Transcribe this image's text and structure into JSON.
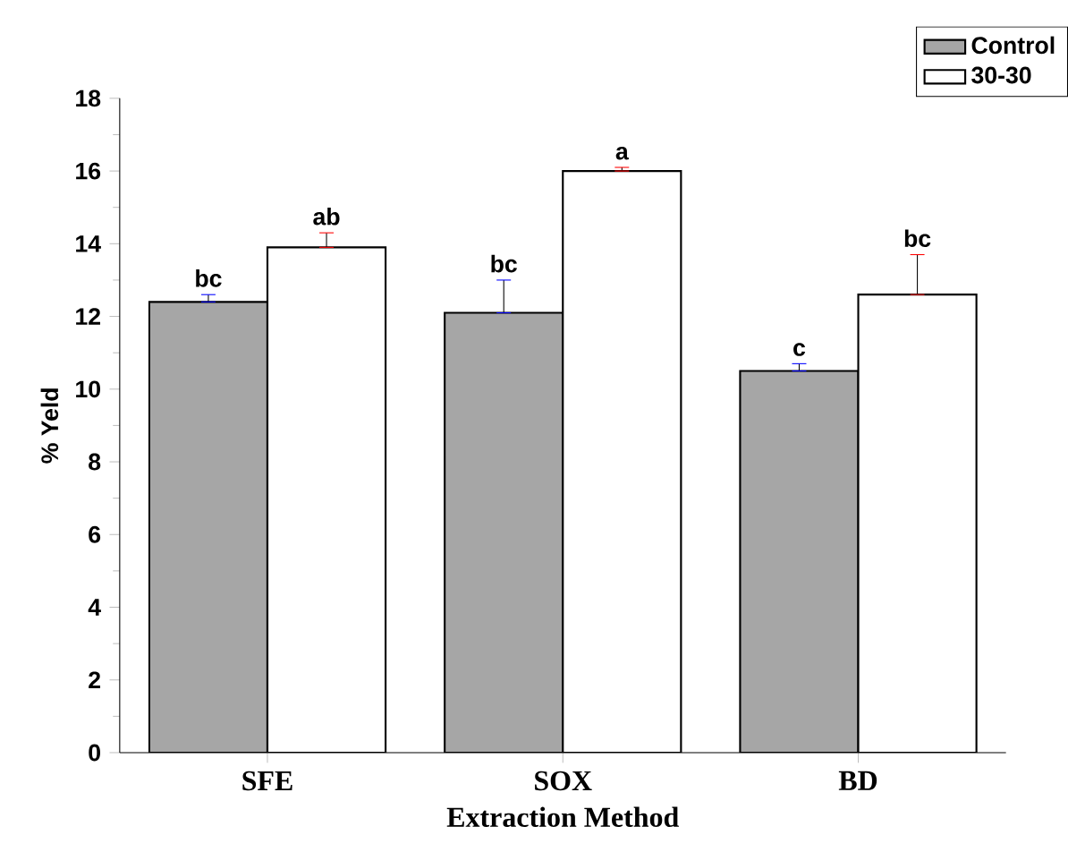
{
  "chart_data": {
    "type": "bar",
    "xlabel": "Extraction Method",
    "ylabel": "% Yeld",
    "categories": [
      "SFE",
      "SOX",
      "BD"
    ],
    "series": [
      {
        "name": "Control",
        "color": "#a6a6a6",
        "values": [
          12.4,
          12.1,
          10.5
        ],
        "errors": [
          [
            12.4,
            12.6
          ],
          [
            12.1,
            13.0
          ],
          [
            10.5,
            10.7
          ]
        ]
      },
      {
        "name": "30-30",
        "color": "#ffffff",
        "values": [
          13.9,
          16.0,
          12.6
        ],
        "errors": [
          [
            13.9,
            14.3
          ],
          [
            16.0,
            16.1
          ],
          [
            12.6,
            13.7
          ]
        ]
      }
    ],
    "ylim": [
      0,
      18
    ],
    "yticks": [
      0,
      2,
      4,
      6,
      8,
      10,
      12,
      14,
      16,
      18
    ],
    "annotations": [
      "bc",
      "ab",
      "bc",
      "a",
      "c",
      "bc"
    ],
    "legend": "top right",
    "grid": false
  }
}
